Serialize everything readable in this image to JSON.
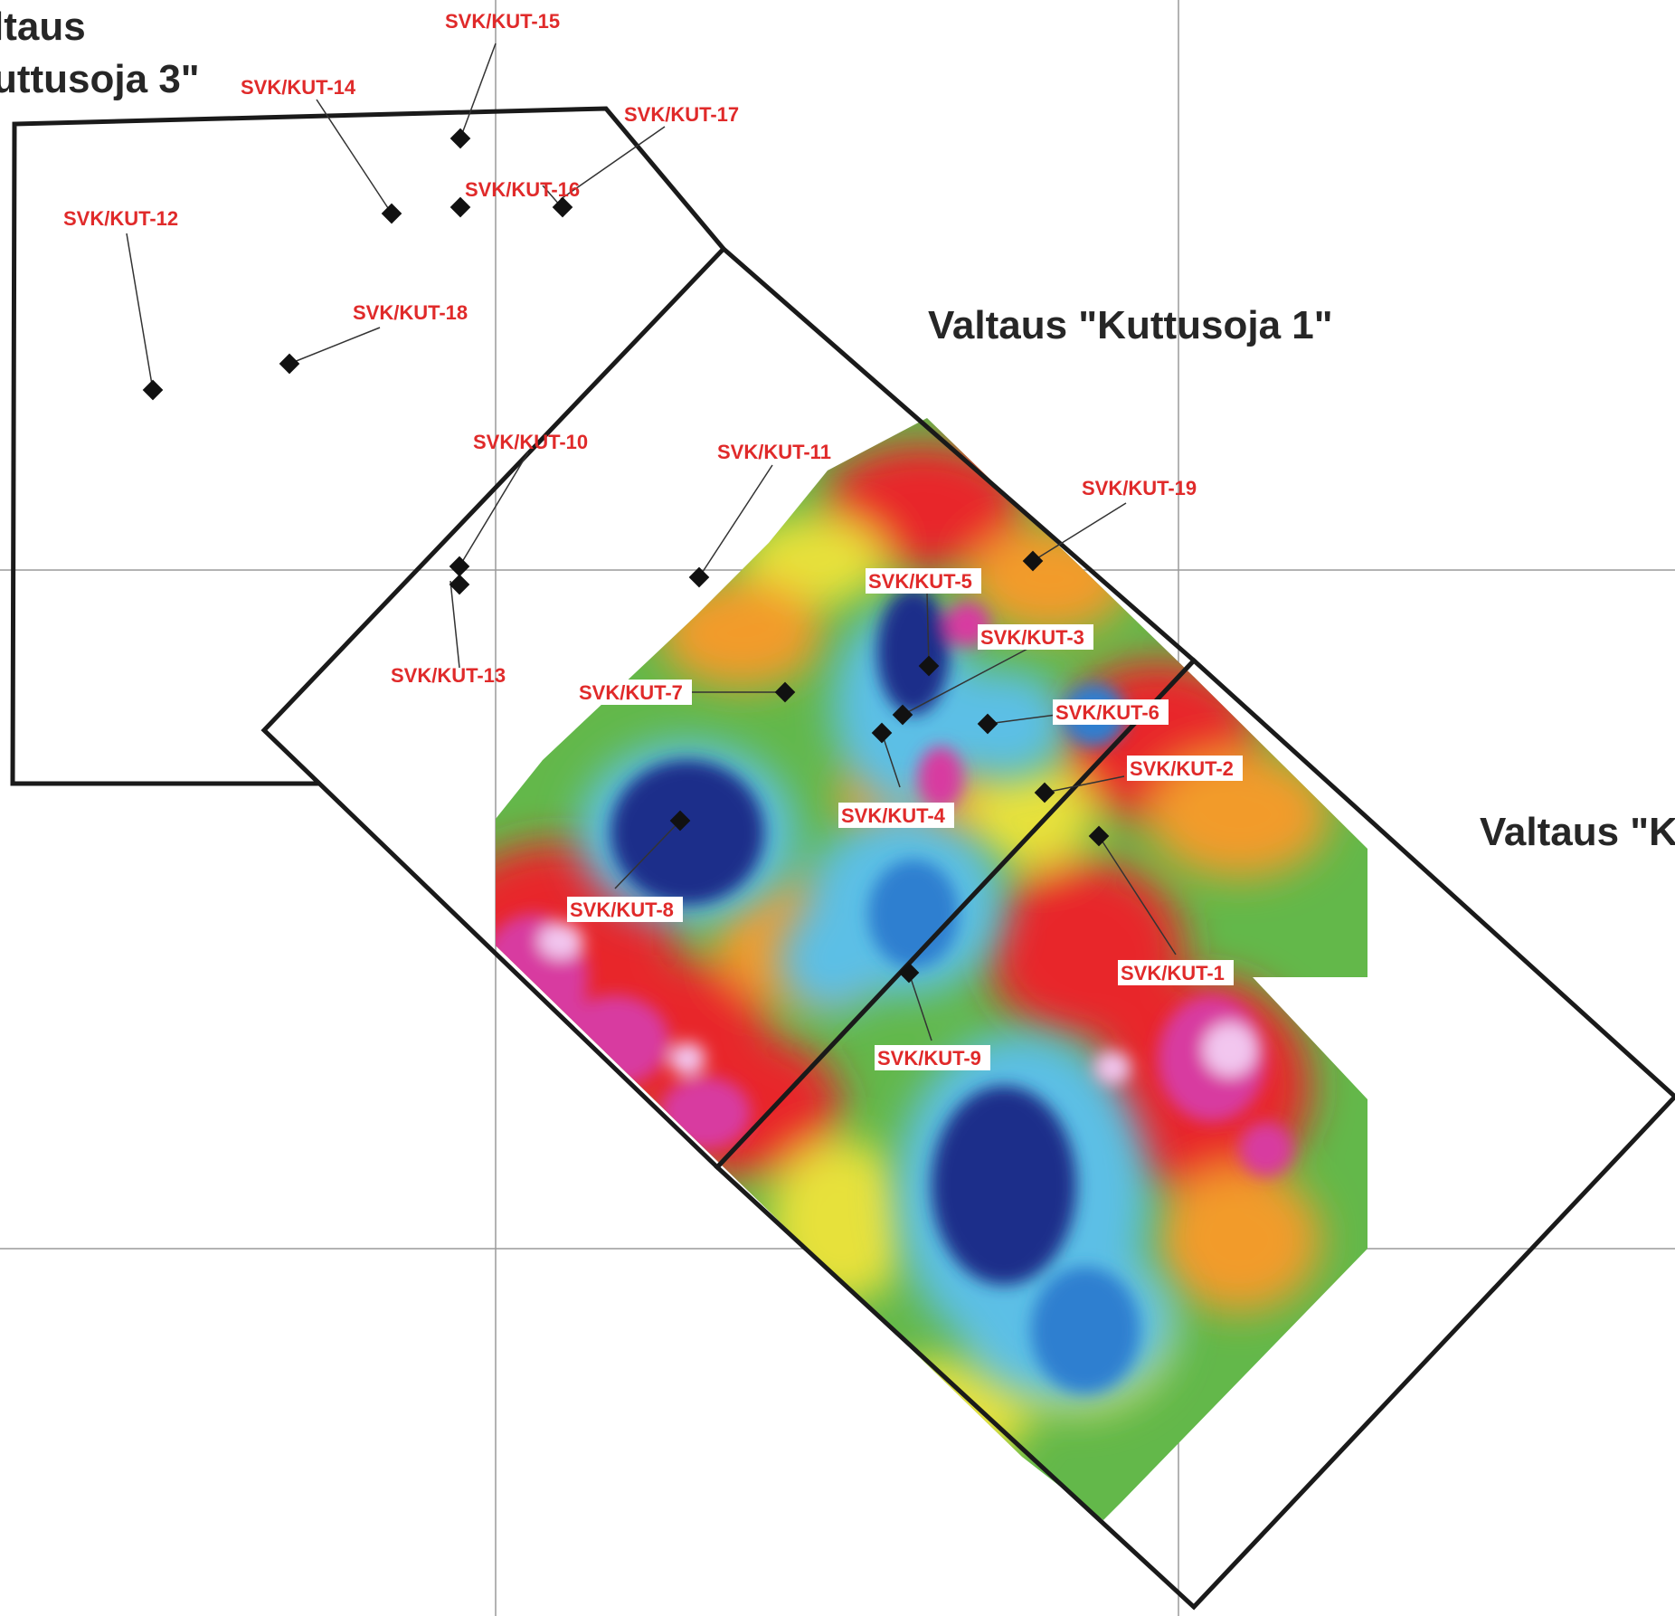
{
  "claims": {
    "kuttusoja3": {
      "line1": "ltaus",
      "line2": "uttusoja 3\""
    },
    "kuttusoja1": {
      "title": "Valtaus \"Kuttusoja 1\""
    },
    "partial_right": {
      "title": "Valtaus \"K"
    }
  },
  "drillholes": [
    "SVK/KUT-15",
    "SVK/KUT-14",
    "SVK/KUT-17",
    "SVK/KUT-16",
    "SVK/KUT-12",
    "SVK/KUT-18",
    "SVK/KUT-10",
    "SVK/KUT-11",
    "SVK/KUT-19",
    "SVK/KUT-5",
    "SVK/KUT-3",
    "SVK/KUT-13",
    "SVK/KUT-7",
    "SVK/KUT-6",
    "SVK/KUT-2",
    "SVK/KUT-4",
    "SVK/KUT-8",
    "SVK/KUT-1",
    "SVK/KUT-9"
  ],
  "colors": {
    "label_text": "#e02a2a",
    "claim_line": "#1a1a1a",
    "grid_line": "#9a9a9a",
    "anomaly_scale": [
      "#1b2f8a",
      "#2f7fd0",
      "#5bbfe6",
      "#63b84a",
      "#e7e13a",
      "#f29b2b",
      "#e8282a",
      "#d83aa0",
      "#f2c6ef"
    ]
  }
}
